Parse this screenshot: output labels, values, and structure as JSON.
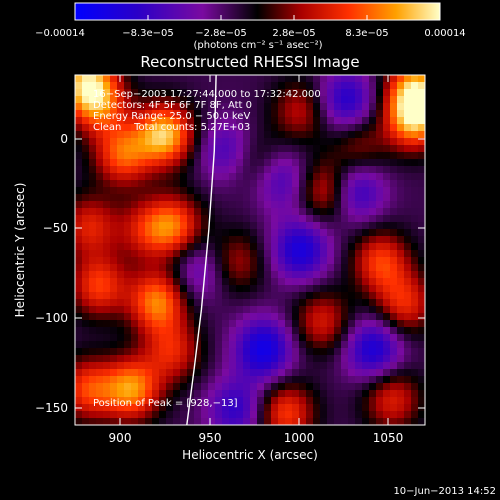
{
  "colorbar": {
    "ticks": [
      "−0.00014",
      "−8.3e−05",
      "−2.8e−05",
      "2.8e−05",
      "8.3e−05",
      "0.00014"
    ],
    "unit_label": "(photons cm⁻² s⁻¹ asec⁻²)",
    "range": [
      -0.00014,
      0.00014
    ]
  },
  "plot": {
    "title": "Reconstructed RHESSI Image",
    "xlabel": "Heliocentric X (arcsec)",
    "ylabel": "Heliocentric Y (arcsec)",
    "x_ticks": [
      "900",
      "950",
      "1000",
      "1050"
    ],
    "y_ticks": [
      "0",
      "−50",
      "−100",
      "−150"
    ],
    "xlim": [
      877,
      1068
    ],
    "ylim": [
      -158,
      18
    ],
    "annotations": [
      "16−Sep−2003 17:27:44.000 to 17:32:42.000",
      "Detectors: 4F 5F 6F 7F 8F, Att 0",
      "Energy Range: 25.0 − 50.0 keV",
      "Clean    Total counts: 5.27E+03"
    ],
    "peak_label": "Position of Peak = [928,−13]"
  },
  "footer": {
    "timestamp": "10−Jun−2013 14:52"
  },
  "chart_data": {
    "type": "heatmap",
    "title": "Reconstructed RHESSI Image",
    "xlabel": "Heliocentric X (arcsec)",
    "ylabel": "Heliocentric Y (arcsec)",
    "xlim": [
      877,
      1068
    ],
    "ylim": [
      -158,
      18
    ],
    "colorbar_range": [
      -0.00014,
      0.00014
    ],
    "colorbar_ticks": [
      -0.00014,
      -8.3e-05,
      -2.8e-05,
      2.8e-05,
      8.3e-05,
      0.00014
    ],
    "peak": [
      928,
      -13
    ],
    "limb_curve": [
      [
        954,
        18
      ],
      [
        953,
        -20
      ],
      [
        950,
        -60
      ],
      [
        946,
        -100
      ],
      [
        942,
        -130
      ],
      [
        938,
        -158
      ]
    ],
    "blobs": [
      {
        "x": 883,
        "y": 15,
        "v": 0.00012
      },
      {
        "x": 926,
        "y": -12,
        "v": 0.00014
      },
      {
        "x": 903,
        "y": -22,
        "v": 0.0001
      },
      {
        "x": 890,
        "y": 3,
        "v": 9e-05
      },
      {
        "x": 931,
        "y": -58,
        "v": 0.0001
      },
      {
        "x": 922,
        "y": -96,
        "v": 0.000115
      },
      {
        "x": 890,
        "y": -88,
        "v": 9e-05
      },
      {
        "x": 885,
        "y": -58,
        "v": 7.5e-05
      },
      {
        "x": 908,
        "y": -140,
        "v": 0.00012
      },
      {
        "x": 884,
        "y": -140,
        "v": 9e-05
      },
      {
        "x": 930,
        "y": -121,
        "v": 7.5e-05
      },
      {
        "x": 915,
        "y": -60,
        "v": 6e-05
      },
      {
        "x": 1062,
        "y": -4,
        "v": 0.00013
      },
      {
        "x": 1063,
        "y": 11,
        "v": 0.00012
      },
      {
        "x": 1044,
        "y": -76,
        "v": 9e-05
      },
      {
        "x": 1057,
        "y": -97,
        "v": 8e-05
      },
      {
        "x": 1014,
        "y": -40,
        "v": 8e-05
      },
      {
        "x": 1012,
        "y": -106,
        "v": 7e-05
      },
      {
        "x": 992,
        "y": -152,
        "v": 9e-05
      },
      {
        "x": 1050,
        "y": -145,
        "v": 7.5e-05
      },
      {
        "x": 965,
        "y": -76,
        "v": 5.5e-05
      },
      {
        "x": 1000,
        "y": 0,
        "v": 6e-05
      },
      {
        "x": 1032,
        "y": -18,
        "v": 5e-05
      },
      {
        "x": 975,
        "y": -25,
        "v": 4e-05
      },
      {
        "x": 1000,
        "y": -70,
        "v": -9e-05
      },
      {
        "x": 980,
        "y": -120,
        "v": -0.0001
      },
      {
        "x": 1040,
        "y": -120,
        "v": -9e-05
      },
      {
        "x": 1030,
        "y": -40,
        "v": -8e-05
      },
      {
        "x": 990,
        "y": -35,
        "v": -6e-05
      },
      {
        "x": 960,
        "y": -20,
        "v": -6e-05
      },
      {
        "x": 965,
        "y": -150,
        "v": -7e-05
      },
      {
        "x": 1025,
        "y": 5,
        "v": -8e-05
      },
      {
        "x": 945,
        "y": -80,
        "v": -5e-05
      }
    ]
  }
}
